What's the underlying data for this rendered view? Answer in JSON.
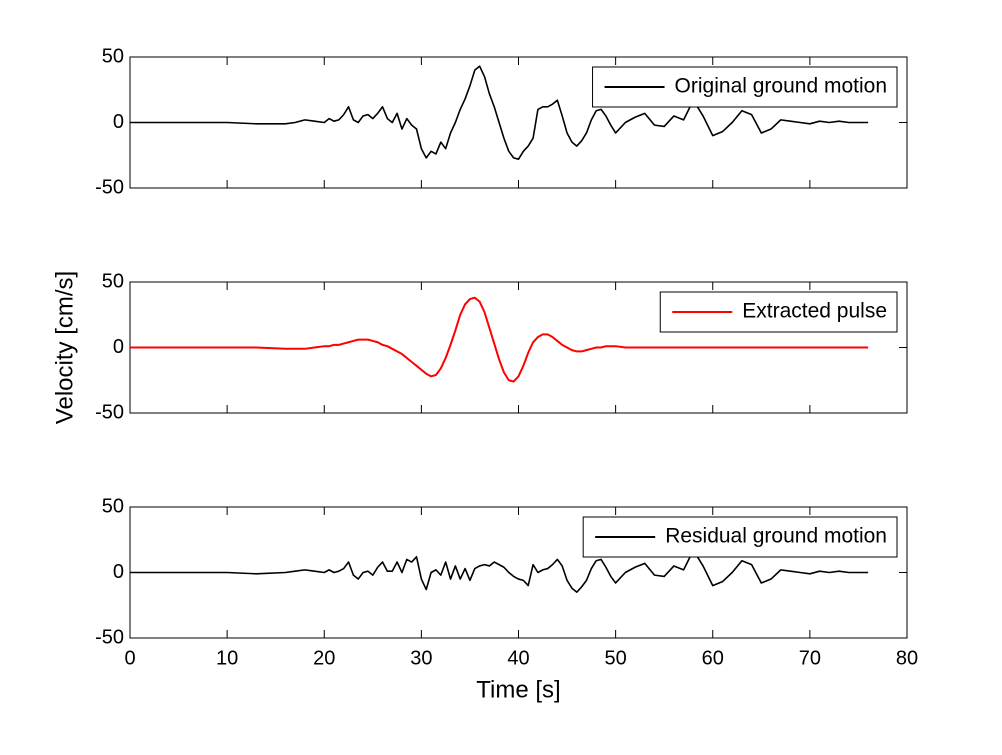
{
  "chart_data": [
    {
      "type": "line",
      "x": [
        0,
        5,
        10,
        13,
        16,
        17,
        18,
        19,
        20,
        20.5,
        21,
        21.5,
        22,
        22.5,
        23,
        23.5,
        24,
        24.5,
        25,
        25.5,
        26,
        26.5,
        27,
        27.5,
        28,
        28.5,
        29,
        29.5,
        30,
        30.5,
        31,
        31.5,
        32,
        32.5,
        33,
        33.5,
        34,
        34.5,
        35,
        35.5,
        36,
        36.5,
        37,
        37.5,
        38,
        38.5,
        39,
        39.5,
        40,
        40.5,
        41,
        41.5,
        42,
        42.5,
        43,
        43.5,
        44,
        44.5,
        45,
        45.5,
        46,
        46.5,
        47,
        47.5,
        48,
        48.5,
        49,
        49.5,
        50,
        51,
        52,
        53,
        54,
        55,
        56,
        57,
        58,
        59,
        60,
        61,
        62,
        63,
        64,
        65,
        66,
        67,
        68,
        69,
        70,
        71,
        72,
        73,
        74,
        75,
        76
      ],
      "series": [
        {
          "name": "Original ground motion",
          "color": "#000000",
          "values": [
            0,
            0,
            0,
            -1,
            -1,
            0,
            2,
            1,
            0,
            3,
            1,
            2,
            6,
            12,
            2,
            0,
            5,
            6,
            3,
            7,
            12,
            3,
            0,
            7,
            -5,
            3,
            -2,
            -5,
            -20,
            -27,
            -22,
            -24,
            -15,
            -20,
            -8,
            0,
            10,
            18,
            28,
            40,
            43,
            35,
            22,
            12,
            0,
            -12,
            -22,
            -27,
            -28,
            -22,
            -18,
            -12,
            10,
            12,
            12,
            14,
            17,
            5,
            -8,
            -15,
            -18,
            -14,
            -8,
            2,
            9,
            10,
            5,
            -2,
            -8,
            0,
            4,
            7,
            -2,
            -3,
            5,
            2,
            17,
            5,
            -10,
            -7,
            0,
            9,
            6,
            -8,
            -5,
            2,
            1,
            0,
            -1,
            1,
            0,
            1,
            0,
            0,
            0
          ]
        }
      ],
      "xlim": [
        0,
        80
      ],
      "ylim": [
        -50,
        50
      ],
      "yticks": [
        -50,
        0,
        50
      ],
      "legend": "northeast"
    },
    {
      "type": "line",
      "ylabel": "Velocity [cm/s]",
      "x": [
        0,
        5,
        10,
        13,
        16,
        17,
        18,
        19,
        20,
        20.5,
        21,
        21.5,
        22,
        22.5,
        23,
        23.5,
        24,
        24.5,
        25,
        25.5,
        26,
        26.5,
        27,
        27.5,
        28,
        28.5,
        29,
        29.5,
        30,
        30.5,
        31,
        31.5,
        32,
        32.5,
        33,
        33.5,
        34,
        34.5,
        35,
        35.5,
        36,
        36.5,
        37,
        37.5,
        38,
        38.5,
        39,
        39.5,
        40,
        40.5,
        41,
        41.5,
        42,
        42.5,
        43,
        43.5,
        44,
        44.5,
        45,
        45.5,
        46,
        46.5,
        47,
        47.5,
        48,
        48.5,
        49,
        49.5,
        50,
        51,
        52,
        53,
        54,
        55,
        56,
        57,
        58,
        59,
        60,
        61,
        62,
        63,
        64,
        65,
        66,
        67,
        68,
        69,
        70,
        71,
        72,
        73,
        74,
        75,
        76
      ],
      "series": [
        {
          "name": "Extracted pulse",
          "color": "#ff0000",
          "values": [
            0,
            0,
            0,
            0,
            -1,
            -1,
            -1,
            0,
            1,
            1,
            2,
            2,
            3,
            4,
            5,
            6,
            6,
            6,
            5,
            4,
            2,
            1,
            -1,
            -3,
            -5,
            -8,
            -11,
            -14,
            -17,
            -20,
            -22,
            -21,
            -16,
            -8,
            2,
            13,
            25,
            33,
            37,
            38,
            35,
            27,
            15,
            3,
            -9,
            -19,
            -25,
            -26,
            -22,
            -14,
            -4,
            4,
            8,
            10,
            10,
            8,
            5,
            2,
            0,
            -2,
            -3,
            -3,
            -2,
            -1,
            0,
            0,
            1,
            1,
            1,
            0,
            0,
            0,
            0,
            0,
            0,
            0,
            0,
            0,
            0,
            0,
            0,
            0,
            0,
            0,
            0,
            0,
            0,
            0,
            0,
            0,
            0,
            0,
            0,
            0,
            0
          ]
        }
      ],
      "xlim": [
        0,
        80
      ],
      "ylim": [
        -50,
        50
      ],
      "yticks": [
        -50,
        0,
        50
      ],
      "legend": "northeast"
    },
    {
      "type": "line",
      "xlabel": "Time [s]",
      "x": [
        0,
        5,
        10,
        13,
        16,
        17,
        18,
        19,
        20,
        20.5,
        21,
        21.5,
        22,
        22.5,
        23,
        23.5,
        24,
        24.5,
        25,
        25.5,
        26,
        26.5,
        27,
        27.5,
        28,
        28.5,
        29,
        29.5,
        30,
        30.5,
        31,
        31.5,
        32,
        32.5,
        33,
        33.5,
        34,
        34.5,
        35,
        35.5,
        36,
        36.5,
        37,
        37.5,
        38,
        38.5,
        39,
        39.5,
        40,
        40.5,
        41,
        41.5,
        42,
        42.5,
        43,
        43.5,
        44,
        44.5,
        45,
        45.5,
        46,
        46.5,
        47,
        47.5,
        48,
        48.5,
        49,
        49.5,
        50,
        51,
        52,
        53,
        54,
        55,
        56,
        57,
        58,
        59,
        60,
        61,
        62,
        63,
        64,
        65,
        66,
        67,
        68,
        69,
        70,
        71,
        72,
        73,
        74,
        75,
        76
      ],
      "series": [
        {
          "name": "Residual ground motion",
          "color": "#000000",
          "values": [
            0,
            0,
            0,
            -1,
            0,
            1,
            2,
            1,
            0,
            2,
            0,
            1,
            3,
            8,
            -2,
            -5,
            0,
            1,
            -2,
            4,
            8,
            1,
            1,
            8,
            0,
            10,
            8,
            12,
            -5,
            -13,
            0,
            2,
            -2,
            8,
            -5,
            5,
            -5,
            3,
            -6,
            3,
            5,
            6,
            5,
            8,
            6,
            4,
            0,
            -3,
            -5,
            -6,
            -10,
            6,
            0,
            2,
            3,
            6,
            10,
            5,
            -6,
            -12,
            -15,
            -11,
            -6,
            3,
            9,
            10,
            4,
            -3,
            -8,
            0,
            4,
            7,
            -2,
            -3,
            5,
            2,
            17,
            5,
            -10,
            -7,
            0,
            9,
            6,
            -8,
            -5,
            2,
            1,
            0,
            -1,
            1,
            0,
            1,
            0,
            0,
            0
          ]
        }
      ],
      "xlim": [
        0,
        80
      ],
      "xticks": [
        0,
        10,
        20,
        30,
        40,
        50,
        60,
        70,
        80
      ],
      "ylim": [
        -50,
        50
      ],
      "yticks": [
        -50,
        0,
        50
      ],
      "legend": "northeast"
    }
  ]
}
